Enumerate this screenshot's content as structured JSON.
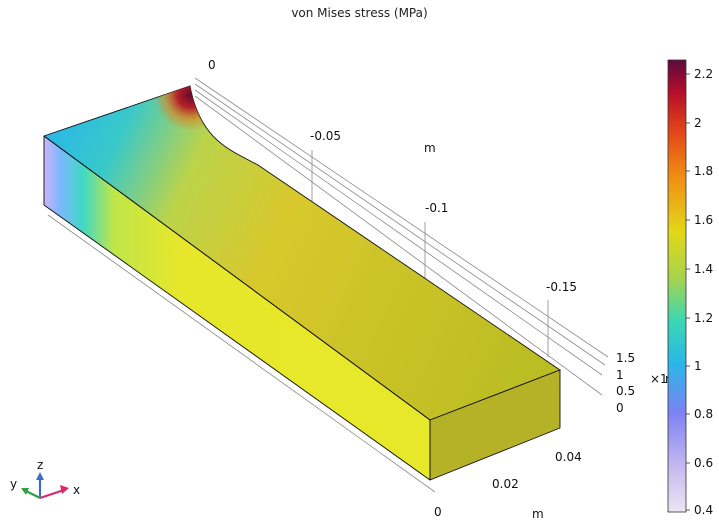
{
  "plot": {
    "title": "von Mises stress (MPa)"
  },
  "axes": {
    "y_ticks": [
      "0",
      "-0.05",
      "-0.1",
      "-0.15"
    ],
    "y_unit": "m",
    "z_ticks": [
      "1.5",
      "1",
      "0.5",
      "0"
    ],
    "z_exponent": "×1",
    "z_unit": "m",
    "x_ticks": [
      "0.04",
      "0.02",
      "0"
    ],
    "x_unit": "m"
  },
  "colorbar": {
    "ticks": [
      "2.2",
      "2",
      "1.8",
      "1.6",
      "1.4",
      "1.2",
      "1",
      "0.8",
      "0.6",
      "0.4"
    ],
    "range": [
      0.4,
      2.25
    ],
    "colors": [
      "#5a0b3e",
      "#b40e2a",
      "#e0401a",
      "#f08f14",
      "#e3d719",
      "#a8d44a",
      "#39d7b6",
      "#2ab7e8",
      "#7c82f2",
      "#c6b8f0",
      "#ece6f3"
    ]
  },
  "triad": {
    "x_label": "x",
    "y_label": "y",
    "z_label": "z"
  },
  "colors": {
    "x_axis": "#d62a6a",
    "y_axis": "#2f9e44",
    "z_axis": "#3b6fc4",
    "grid": "#8a8a8a"
  }
}
